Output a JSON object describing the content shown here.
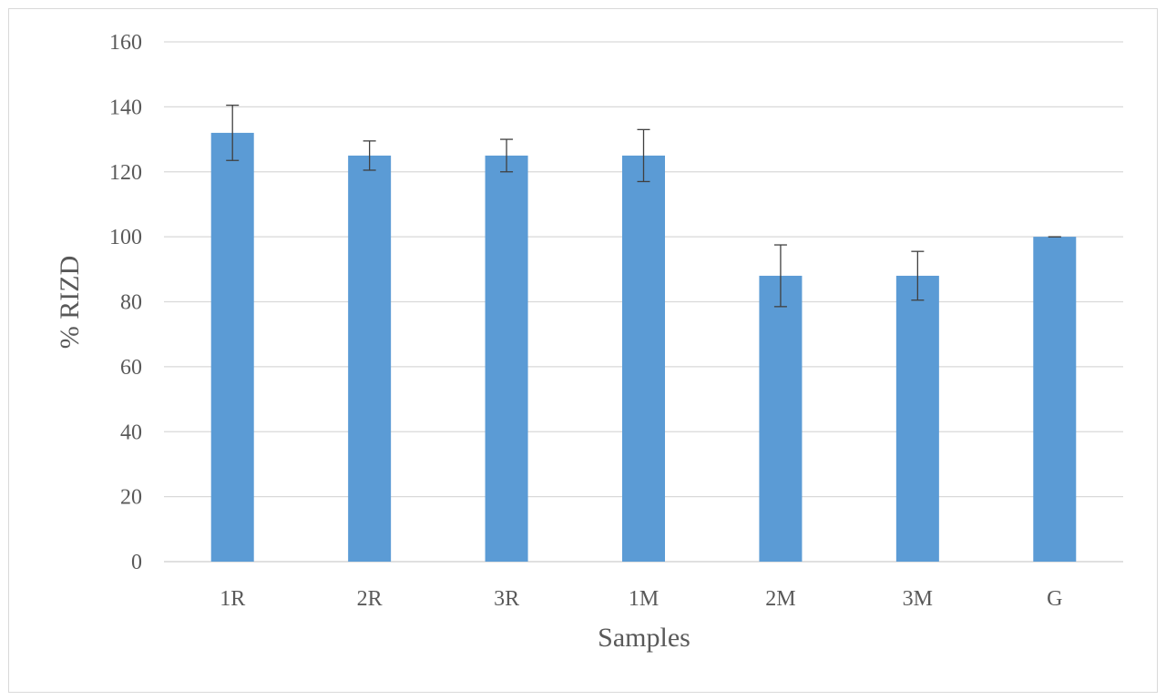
{
  "chart_data": {
    "type": "bar",
    "title": "",
    "xlabel": "Samples",
    "ylabel": "% RIZD",
    "categories": [
      "1R",
      "2R",
      "3R",
      "1M",
      "2M",
      "3M",
      "G"
    ],
    "values": [
      132,
      125,
      125,
      125,
      88,
      88,
      100
    ],
    "error_bars": [
      8.5,
      4.5,
      5,
      8,
      9.5,
      7.5,
      0
    ],
    "ylim": [
      0,
      160
    ],
    "yticks": [
      0,
      20,
      40,
      60,
      80,
      100,
      120,
      140,
      160
    ],
    "grid": true,
    "legend": "none",
    "bar_color": "#5b9bd5",
    "grid_color": "#d9d9d9",
    "text_color": "#595959",
    "errorbar_color": "#404040"
  }
}
